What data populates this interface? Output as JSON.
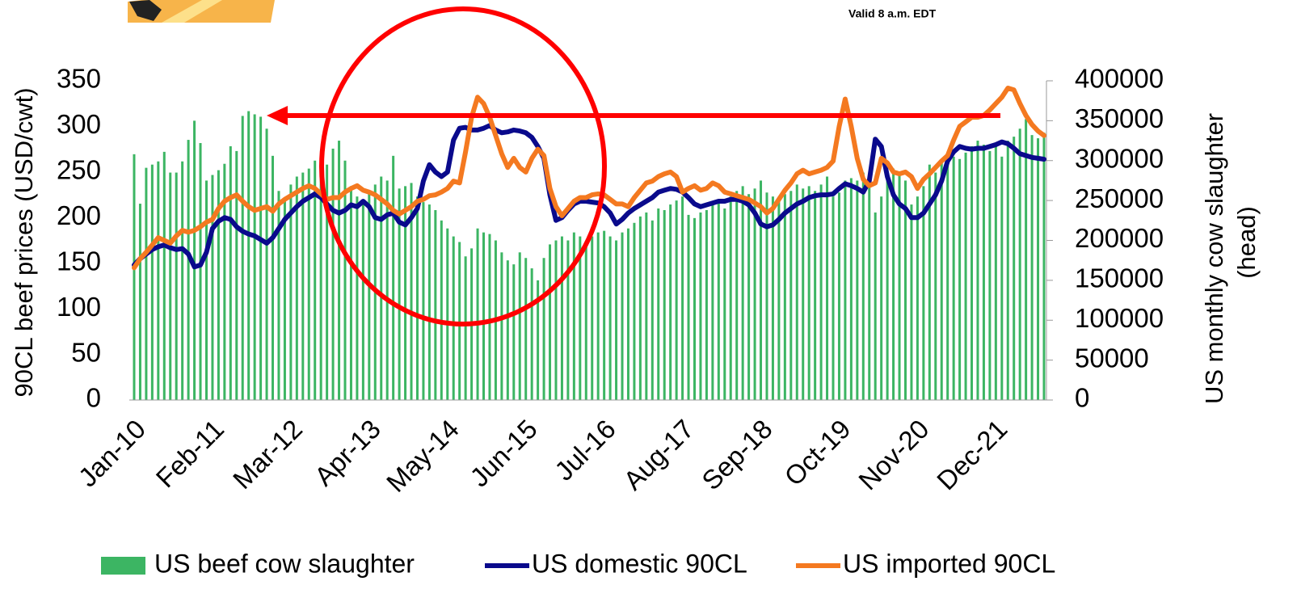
{
  "header": {
    "text": "Valid 8 a.m. EDT"
  },
  "chart_data": {
    "type": "combo",
    "y_label": "90CL beef prices (USD/cwt)",
    "y2_label": [
      "US monthly cow slaughter",
      "(head)"
    ],
    "categories": [
      "Jan-10",
      null,
      null,
      null,
      null,
      null,
      null,
      null,
      null,
      null,
      null,
      null,
      null,
      "Feb-11",
      null,
      null,
      null,
      null,
      null,
      null,
      null,
      null,
      null,
      null,
      null,
      null,
      "Mar-12",
      null,
      null,
      null,
      null,
      null,
      null,
      null,
      null,
      null,
      null,
      null,
      null,
      "Apr-13",
      null,
      null,
      null,
      null,
      null,
      null,
      null,
      null,
      null,
      null,
      null,
      null,
      "May-14",
      null,
      null,
      null,
      null,
      null,
      null,
      null,
      null,
      null,
      null,
      null,
      null,
      "Jun-15",
      null,
      null,
      null,
      null,
      null,
      null,
      null,
      null,
      null,
      null,
      null,
      null,
      "Jul-16",
      null,
      null,
      null,
      null,
      null,
      null,
      null,
      null,
      null,
      null,
      null,
      null,
      "Aug-17",
      null,
      null,
      null,
      null,
      null,
      null,
      null,
      null,
      null,
      null,
      null,
      null,
      "Sep-18",
      null,
      null,
      null,
      null,
      null,
      null,
      null,
      null,
      null,
      null,
      null,
      null,
      "Oct-19",
      null,
      null,
      null,
      null,
      null,
      null,
      null,
      null,
      null,
      null,
      null,
      null,
      "Nov-20",
      null,
      null,
      null,
      null,
      null,
      null,
      null,
      null,
      null,
      null,
      null,
      null,
      "Dec-21",
      null,
      null,
      null,
      null,
      null,
      null,
      null,
      null
    ],
    "ylim": [
      0,
      350
    ],
    "yticks": [
      0,
      50,
      100,
      150,
      200,
      250,
      300,
      350
    ],
    "y2lim": [
      0,
      400000
    ],
    "y2ticks": [
      0,
      50000,
      100000,
      150000,
      200000,
      250000,
      300000,
      350000,
      400000
    ],
    "grid": false,
    "legend": "bottom",
    "series": [
      {
        "name": "US beef cow slaughter",
        "type": "bar",
        "axis": "y2",
        "color": "#3cb563",
        "values": [
          308000,
          246000,
          291000,
          295000,
          299000,
          311000,
          285000,
          285000,
          299000,
          326000,
          350000,
          322000,
          275000,
          282000,
          288000,
          296000,
          318000,
          312000,
          356000,
          362000,
          358000,
          355000,
          340000,
          306000,
          262000,
          250000,
          270000,
          280000,
          285000,
          290000,
          300000,
          305000,
          295000,
          315000,
          325000,
          300000,
          268000,
          255000,
          250000,
          262000,
          270000,
          280000,
          275000,
          306000,
          265000,
          268000,
          272000,
          255000,
          248000,
          245000,
          238000,
          225000,
          215000,
          205000,
          198000,
          180000,
          190000,
          215000,
          210000,
          208000,
          200000,
          185000,
          175000,
          170000,
          185000,
          178000,
          165000,
          150000,
          178000,
          195000,
          200000,
          205000,
          200000,
          210000,
          205000,
          195000,
          205000,
          210000,
          212000,
          205000,
          200000,
          210000,
          215000,
          222000,
          230000,
          235000,
          225000,
          240000,
          238000,
          245000,
          250000,
          255000,
          232000,
          228000,
          235000,
          238000,
          245000,
          250000,
          240000,
          255000,
          262000,
          268000,
          258000,
          265000,
          275000,
          260000,
          255000,
          250000,
          258000,
          262000,
          270000,
          265000,
          268000,
          262000,
          270000,
          280000,
          255000,
          260000,
          275000,
          278000,
          275000,
          285000,
          270000,
          235000,
          255000,
          280000,
          290000,
          285000,
          275000,
          245000,
          255000,
          268000,
          295000,
          285000,
          300000,
          300000,
          305000,
          302000,
          310000,
          318000,
          325000,
          320000,
          312000,
          318000,
          305000,
          325000,
          330000,
          340000,
          352000,
          332000,
          328000,
          335000
        ]
      },
      {
        "name": "US domestic 90CL",
        "type": "line",
        "axis": "y",
        "color": "#0a0a8c",
        "values": [
          148,
          155,
          160,
          165,
          168,
          170,
          167,
          165,
          166,
          160,
          146,
          148,
          162,
          188,
          196,
          200,
          198,
          190,
          185,
          182,
          180,
          176,
          172,
          178,
          188,
          198,
          205,
          212,
          218,
          222,
          226,
          222,
          215,
          208,
          205,
          208,
          214,
          212,
          218,
          212,
          200,
          198,
          203,
          205,
          195,
          192,
          200,
          210,
          240,
          258,
          250,
          245,
          250,
          285,
          298,
          299,
          296,
          296,
          298,
          301,
          296,
          293,
          294,
          296,
          295,
          293,
          288,
          278,
          265,
          225,
          197,
          200,
          208,
          215,
          218,
          218,
          217,
          216,
          212,
          205,
          193,
          198,
          205,
          210,
          214,
          218,
          222,
          228,
          230,
          232,
          231,
          228,
          222,
          215,
          212,
          214,
          216,
          218,
          218,
          220,
          220,
          218,
          214,
          205,
          193,
          190,
          192,
          198,
          205,
          210,
          215,
          218,
          222,
          224,
          225,
          225,
          226,
          232,
          237,
          235,
          232,
          228,
          240,
          286,
          278,
          245,
          225,
          215,
          210,
          200,
          200,
          205,
          215,
          225,
          240,
          262,
          272,
          278,
          276,
          275,
          276,
          276,
          278,
          280,
          283,
          281,
          276,
          270,
          268,
          266,
          265,
          264
        ]
      },
      {
        "name": "US imported 90CL",
        "type": "line",
        "axis": "y",
        "color": "#f47920",
        "values": [
          145,
          155,
          162,
          170,
          178,
          175,
          172,
          180,
          186,
          184,
          186,
          190,
          195,
          198,
          210,
          218,
          222,
          225,
          218,
          212,
          208,
          210,
          212,
          207,
          215,
          220,
          224,
          228,
          232,
          235,
          232,
          226,
          220,
          222,
          222,
          228,
          232,
          235,
          230,
          228,
          225,
          220,
          215,
          208,
          204,
          208,
          212,
          218,
          220,
          224,
          225,
          228,
          232,
          240,
          238,
          272,
          310,
          332,
          325,
          310,
          290,
          270,
          255,
          265,
          255,
          250,
          265,
          275,
          268,
          232,
          212,
          202,
          210,
          218,
          222,
          222,
          225,
          226,
          225,
          220,
          215,
          215,
          212,
          222,
          230,
          238,
          240,
          245,
          248,
          250,
          245,
          228,
          232,
          235,
          230,
          232,
          238,
          235,
          228,
          226,
          224,
          222,
          220,
          216,
          212,
          205,
          210,
          220,
          230,
          238,
          248,
          252,
          248,
          250,
          252,
          255,
          262,
          300,
          330,
          300,
          265,
          242,
          235,
          238,
          265,
          260,
          250,
          248,
          250,
          245,
          232,
          242,
          248,
          255,
          262,
          268,
          285,
          300,
          305,
          310,
          310,
          312,
          318,
          325,
          332,
          342,
          340,
          325,
          312,
          302,
          295,
          290
        ]
      }
    ]
  }
}
